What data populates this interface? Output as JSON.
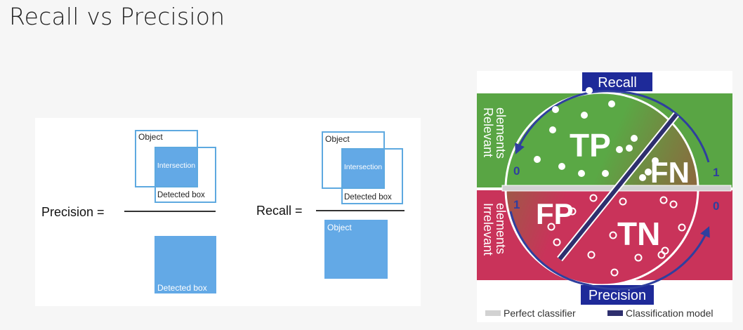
{
  "title": "Recall vs Precision",
  "left_panel": {
    "precision": {
      "label": "Precision =",
      "object_label": "Object",
      "intersection_label": "Intersection",
      "detected_box_label": "Detected box",
      "denominator_label": "Detected box"
    },
    "recall": {
      "label": "Recall =",
      "object_label": "Object",
      "intersection_label": "Intersection",
      "detected_box_label": "Detected box",
      "denominator_label": "Object"
    },
    "colors": {
      "box_fill": "#63a9e6",
      "box_outline": "#5ea9e0"
    }
  },
  "right_panel": {
    "recall_label": "Recall",
    "precision_label": "Precision",
    "relevant_label": [
      "Relevant",
      "elements"
    ],
    "irrelevant_label": [
      "Irrelevant",
      "elements"
    ],
    "tp": "TP",
    "fn": "FN",
    "fp": "FP",
    "tn": "TN",
    "recall_zero": "0",
    "recall_one": "1",
    "precision_one": "1",
    "precision_zero": "0",
    "legend": {
      "perfect_classifier": "Perfect classifier",
      "classification_model": "Classification model"
    },
    "colors": {
      "relevant": "#5ea946",
      "irrelevant": "#c9335a",
      "header": "#1e2a99",
      "model_line": "#2e2f6e",
      "perfect_line": "#d0d0d0"
    }
  }
}
